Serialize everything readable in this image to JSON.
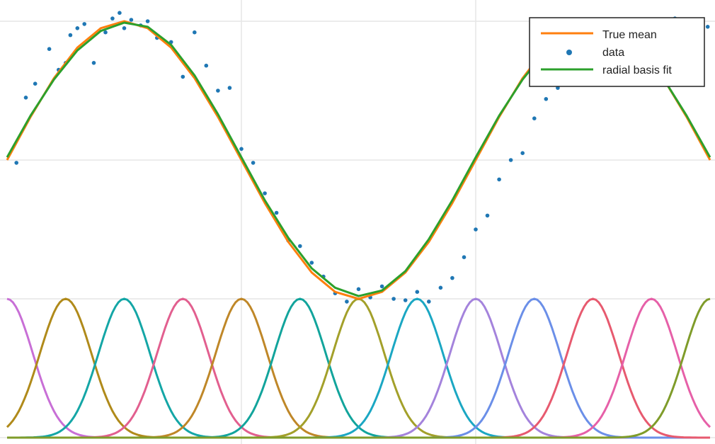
{
  "chart_data": {
    "type": "line",
    "title": "",
    "xlabel": "",
    "ylabel": "",
    "xlim": [
      0,
      3
    ],
    "ylim": [
      0,
      3
    ],
    "grid": true,
    "legend_position": "top-right",
    "legend": [
      "True mean",
      "data",
      "radial basis fit"
    ],
    "true_mean": {
      "name": "True mean",
      "color": "#ff7f0e",
      "x": [
        0.0,
        0.1,
        0.2,
        0.3,
        0.4,
        0.5,
        0.6,
        0.7,
        0.8,
        0.9,
        1.0,
        1.1,
        1.2,
        1.3,
        1.4,
        1.5,
        1.6,
        1.7,
        1.8,
        1.9,
        2.0,
        2.1,
        2.2,
        2.3,
        2.4,
        2.5,
        2.6,
        2.7,
        2.8,
        2.9,
        3.0
      ],
      "y": [
        2.0,
        2.31,
        2.59,
        2.81,
        2.95,
        3.0,
        2.95,
        2.81,
        2.59,
        2.31,
        2.0,
        1.69,
        1.41,
        1.19,
        1.05,
        1.0,
        1.05,
        1.19,
        1.41,
        1.69,
        2.0,
        2.31,
        2.59,
        2.81,
        2.95,
        3.0,
        2.95,
        2.81,
        2.59,
        2.31,
        2.0
      ]
    },
    "fit": {
      "name": "radial basis fit",
      "color": "#2ca02c",
      "x": [
        0.0,
        0.1,
        0.2,
        0.3,
        0.4,
        0.5,
        0.6,
        0.7,
        0.8,
        0.9,
        1.0,
        1.1,
        1.2,
        1.3,
        1.4,
        1.5,
        1.6,
        1.7,
        1.8,
        1.9,
        2.0,
        2.1,
        2.2,
        2.3,
        2.4,
        2.5,
        2.6,
        2.7,
        2.8,
        2.9,
        3.0
      ],
      "y": [
        2.02,
        2.32,
        2.58,
        2.79,
        2.93,
        2.99,
        2.96,
        2.83,
        2.61,
        2.33,
        2.02,
        1.71,
        1.44,
        1.22,
        1.08,
        1.02,
        1.06,
        1.2,
        1.43,
        1.71,
        2.02,
        2.32,
        2.58,
        2.79,
        2.93,
        2.99,
        2.95,
        2.81,
        2.59,
        2.32,
        2.02
      ]
    },
    "data": {
      "name": "data",
      "color": "#1f77b4",
      "x": [
        0.04,
        0.08,
        0.12,
        0.18,
        0.22,
        0.25,
        0.27,
        0.3,
        0.33,
        0.37,
        0.42,
        0.45,
        0.48,
        0.5,
        0.53,
        0.57,
        0.6,
        0.64,
        0.7,
        0.75,
        0.8,
        0.85,
        0.9,
        0.95,
        1.0,
        1.05,
        1.1,
        1.15,
        1.2,
        1.25,
        1.3,
        1.35,
        1.4,
        1.45,
        1.5,
        1.55,
        1.6,
        1.65,
        1.7,
        1.75,
        1.8,
        1.85,
        1.9,
        1.95,
        2.0,
        2.05,
        2.1,
        2.15,
        2.2,
        2.25,
        2.3,
        2.35,
        2.4,
        2.45,
        2.5,
        2.55,
        2.6,
        2.65,
        2.7,
        2.75,
        2.8,
        2.85,
        2.9,
        2.95,
        2.99
      ],
      "y": [
        1.98,
        2.45,
        2.55,
        2.8,
        2.65,
        2.7,
        2.9,
        2.95,
        2.98,
        2.7,
        2.92,
        3.02,
        3.06,
        2.95,
        3.01,
        2.97,
        3.0,
        2.88,
        2.85,
        2.6,
        2.92,
        2.68,
        2.5,
        2.52,
        2.08,
        1.98,
        1.76,
        1.62,
        1.42,
        1.38,
        1.26,
        1.16,
        1.04,
        0.98,
        1.07,
        1.01,
        1.09,
        1.0,
        0.99,
        1.05,
        0.98,
        1.08,
        1.15,
        1.3,
        1.5,
        1.6,
        1.86,
        2.0,
        2.05,
        2.3,
        2.44,
        2.52,
        2.55,
        2.7,
        2.72,
        2.8,
        2.96,
        2.98,
        2.76,
        2.62,
        2.88,
        3.02,
        3.0,
        2.94,
        2.96
      ]
    },
    "basis": {
      "centers": [
        0.0,
        0.25,
        0.5,
        0.75,
        1.0,
        1.25,
        1.5,
        1.75,
        2.0,
        2.25,
        2.5,
        2.75,
        3.0
      ],
      "peak": 1.0,
      "sigma": 0.11,
      "colors": [
        "#c86fd6",
        "#b08a1a",
        "#14a6a6",
        "#e25f8f",
        "#bf8728",
        "#12a49c",
        "#a3a02a",
        "#1ba7c3",
        "#a483dc",
        "#6b8fe8",
        "#e75a6f",
        "#e660a8",
        "#7f9c2a"
      ]
    }
  }
}
